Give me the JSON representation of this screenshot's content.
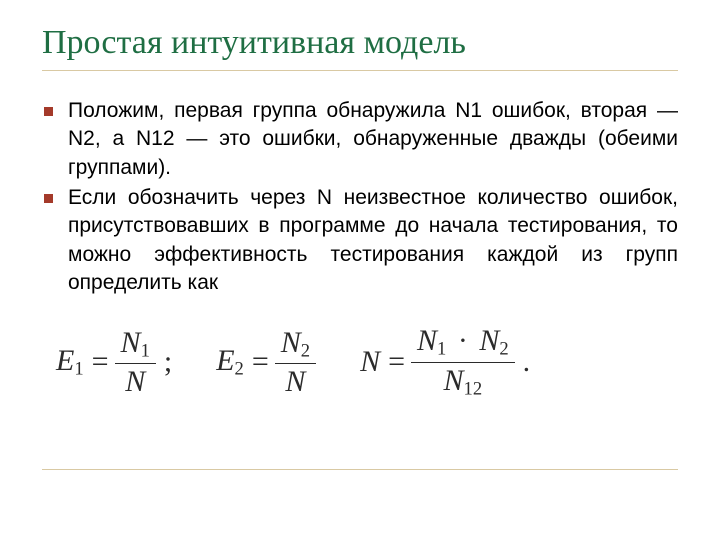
{
  "title": "Простая интуитивная модель",
  "title_color": "#1f6e43",
  "title_fontsize": 34,
  "rule_color": "#d9c9a3",
  "bullet_color": "#a43a2a",
  "body_fontsize": 21,
  "body_color": "#000000",
  "bullets": [
    "Положим, первая группа обнаружила N1 ошибок, вторая — N2, а N12 — это ошибки, обнаруженные дважды (обеими группами).",
    "Если обозначить через N неизвестное количество ошибок, присутствовавших в программе до начала тестирования, то можно эффективность тестирования каждой из групп определить как"
  ],
  "formulas": {
    "fontsize": 30,
    "color": "#2b2b2b",
    "eq1": {
      "lhs_base": "E",
      "lhs_sub": "1",
      "num_base": "N",
      "num_sub": "1",
      "den": "N",
      "trail": ";"
    },
    "eq2": {
      "lhs_base": "E",
      "lhs_sub": "2",
      "num_base": "N",
      "num_sub": "2",
      "den": "N"
    },
    "eq3": {
      "lhs": "N",
      "num_l_base": "N",
      "num_l_sub": "1",
      "op": "·",
      "num_r_base": "N",
      "num_r_sub": "2",
      "den_base": "N",
      "den_sub": "12",
      "trail": "."
    }
  }
}
